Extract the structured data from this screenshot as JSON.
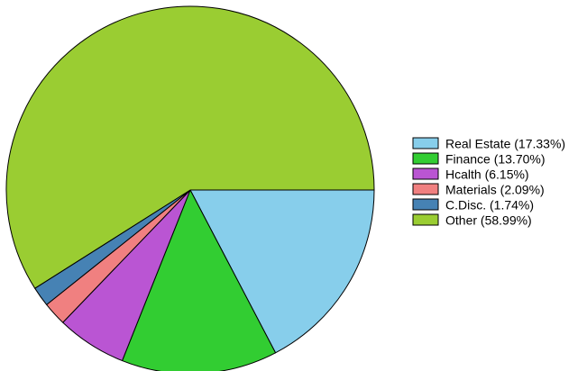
{
  "chart_data": {
    "type": "pie",
    "categories": [
      "Real Estate",
      "Finance",
      "Health",
      "Materials",
      "C.Disc.",
      "Other"
    ],
    "values": [
      17.33,
      13.7,
      6.15,
      2.09,
      1.74,
      58.99
    ],
    "unit": "%",
    "legend_labels": [
      "Real Estate (17.33%)",
      "Finance (13.70%)",
      "Hcalth (6.15%)",
      "Materials (2.09%)",
      "C.Disc. (1.74%)",
      "Other (58.99%)"
    ],
    "colors": [
      "#87ceeb",
      "#32cd32",
      "#ba55d3",
      "#f08080",
      "#4682b4",
      "#9acd32"
    ],
    "start_angle_deg": 0,
    "direction": "clockwise",
    "legend_position": "right"
  }
}
